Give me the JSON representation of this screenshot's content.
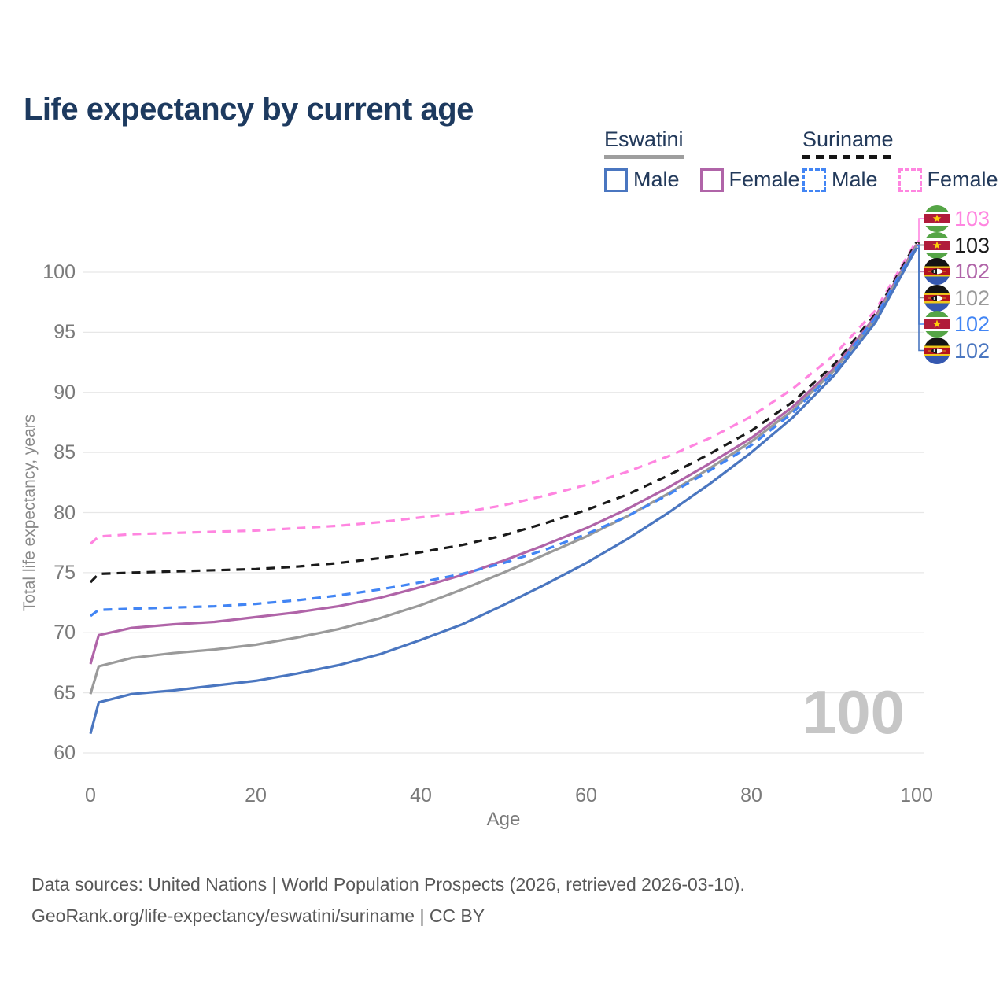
{
  "title": "Life expectancy by current age",
  "watermark": "100",
  "legend": {
    "groups": [
      {
        "name": "Eswatini",
        "line_style": "solid",
        "underline_color": "#9e9e9e",
        "items": [
          {
            "label": "Male",
            "color": "#4a76c0"
          },
          {
            "label": "Female",
            "color": "#b064a8"
          }
        ]
      },
      {
        "name": "Suriname",
        "line_style": "dashed",
        "underline_color": "#151515",
        "items": [
          {
            "label": "Male",
            "color": "#4285f4"
          },
          {
            "label": "Female",
            "color": "#ff85e0"
          }
        ]
      }
    ]
  },
  "chart_data": {
    "type": "line",
    "title": "Life expectancy by current age",
    "xlabel": "Age",
    "ylabel": "Total life expectancy, years",
    "xlim": [
      0,
      100
    ],
    "ylim": [
      60,
      103
    ],
    "x_ticks": [
      0,
      20,
      40,
      60,
      80,
      100
    ],
    "y_ticks": [
      60,
      65,
      70,
      75,
      80,
      85,
      90,
      95,
      100
    ],
    "grid": "horizontal",
    "legend_position": "top-right",
    "x": [
      0,
      1,
      5,
      10,
      15,
      20,
      25,
      30,
      35,
      40,
      45,
      50,
      55,
      60,
      65,
      70,
      75,
      80,
      85,
      90,
      95,
      100
    ],
    "series": [
      {
        "name": "Suriname Female",
        "country": "suriname",
        "sex": "female",
        "style": "dashed",
        "color": "#ff85e0",
        "end_label": "103",
        "values": [
          77.4,
          78.0,
          78.2,
          78.3,
          78.4,
          78.5,
          78.7,
          78.9,
          79.2,
          79.6,
          80.0,
          80.6,
          81.4,
          82.3,
          83.4,
          84.7,
          86.2,
          88.0,
          90.3,
          93.1,
          96.8,
          102.6
        ]
      },
      {
        "name": "Suriname Total",
        "country": "suriname",
        "sex": "total",
        "style": "dashed",
        "color": "#1a1a1a",
        "end_label": "103",
        "values": [
          74.2,
          74.9,
          75.0,
          75.1,
          75.2,
          75.3,
          75.5,
          75.8,
          76.2,
          76.7,
          77.3,
          78.1,
          79.1,
          80.2,
          81.5,
          83.1,
          84.9,
          86.8,
          89.2,
          92.3,
          96.5,
          102.5
        ]
      },
      {
        "name": "Eswatini Female",
        "country": "eswatini",
        "sex": "female",
        "style": "solid",
        "color": "#b064a8",
        "end_label": "102",
        "values": [
          67.4,
          69.8,
          70.4,
          70.7,
          70.9,
          71.3,
          71.7,
          72.2,
          72.9,
          73.8,
          74.8,
          76.0,
          77.3,
          78.7,
          80.3,
          82.1,
          84.1,
          86.2,
          88.8,
          92.0,
          96.3,
          102.3
        ]
      },
      {
        "name": "Eswatini Total",
        "country": "eswatini",
        "sex": "total",
        "style": "solid",
        "color": "#9a9a9a",
        "end_label": "102",
        "values": [
          64.9,
          67.2,
          67.9,
          68.3,
          68.6,
          69.0,
          69.6,
          70.3,
          71.2,
          72.3,
          73.6,
          75.0,
          76.5,
          78.0,
          79.7,
          81.6,
          83.7,
          85.9,
          88.5,
          91.8,
          96.1,
          102.2
        ]
      },
      {
        "name": "Suriname Male",
        "country": "suriname",
        "sex": "male",
        "style": "dashed",
        "color": "#4285f4",
        "end_label": "102",
        "values": [
          71.4,
          71.9,
          72.0,
          72.1,
          72.2,
          72.4,
          72.7,
          73.1,
          73.6,
          74.2,
          74.9,
          75.8,
          76.9,
          78.2,
          79.7,
          81.5,
          83.5,
          85.6,
          88.3,
          91.7,
          96.2,
          102.2
        ]
      },
      {
        "name": "Eswatini Male",
        "country": "eswatini",
        "sex": "male",
        "style": "solid",
        "color": "#4a76c0",
        "end_label": "102",
        "values": [
          61.6,
          64.2,
          64.9,
          65.2,
          65.6,
          66.0,
          66.6,
          67.3,
          68.2,
          69.4,
          70.7,
          72.3,
          74.0,
          75.8,
          77.8,
          80.0,
          82.4,
          85.0,
          87.9,
          91.4,
          95.8,
          102.0
        ]
      }
    ]
  },
  "footer": {
    "line1": "Data sources: United Nations | World Population Prospects (2026, retrieved 2026-03-10).",
    "line2": "GeoRank.org/life-expectancy/eswatini/suriname | CC BY"
  }
}
